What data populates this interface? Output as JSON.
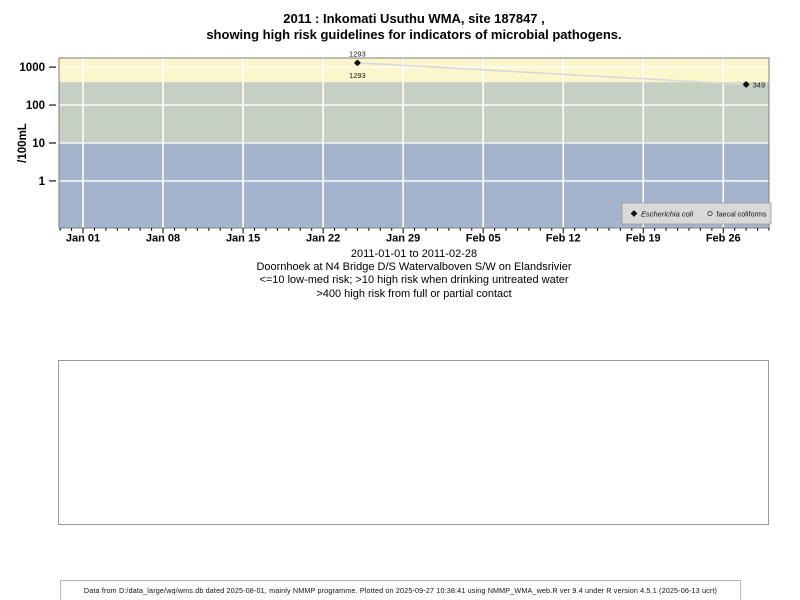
{
  "title": {
    "line1": "2011 : Inkomati Usuthu WMA, site 187847 ,",
    "line2": "showing high risk guidelines for indicators of microbial pathogens."
  },
  "caption": {
    "lines": [
      "2011-01-01 to 2011-02-28",
      "Doornhoek at N4 Bridge D/S Watervalboven S/W on Elandsrivier",
      "<=10 low-med risk; >10 high risk when drinking untreated water",
      ">400 high risk from full or partial contact"
    ]
  },
  "footer": {
    "text": "Data from D:/data_large/wq/wms.db dated 2025-08-01, mainly NMMP programme. Plotted on 2025-09-27 10:38:41 using NMMP_WMA_web.R ver 9.4 under R version 4.5.1 (2025-06-13 ucrt)"
  },
  "chart_data": {
    "type": "scatter",
    "title": "2011 : Inkomati Usuthu WMA, site 187847 , showing high risk guidelines for indicators of microbial pathogens.",
    "ylabel": "/100mL",
    "y_axis": {
      "scale": "log10",
      "ticks": [
        1,
        10,
        100,
        1000
      ],
      "range_log10": [
        -1.24,
        3.24
      ]
    },
    "x_axis": {
      "start_date": "2011-01-01",
      "range_days": [
        -2.1,
        60
      ],
      "minor_tick_interval_days": 1,
      "major_ticks": [
        {
          "day": 0,
          "label": "Jan 01"
        },
        {
          "day": 7,
          "label": "Jan 08"
        },
        {
          "day": 14,
          "label": "Jan 15"
        },
        {
          "day": 21,
          "label": "Jan 22"
        },
        {
          "day": 28,
          "label": "Jan 29"
        },
        {
          "day": 35,
          "label": "Feb 05"
        },
        {
          "day": 42,
          "label": "Feb 12"
        },
        {
          "day": 49,
          "label": "Feb 19"
        },
        {
          "day": 56,
          "label": "Feb 26"
        }
      ]
    },
    "grid": {
      "show": true,
      "color": "#ffffff"
    },
    "bands": [
      {
        "name": "high-risk-full-or-partial-contact",
        "min": 400,
        "max": null,
        "color": "#FCF6CC"
      },
      {
        "name": "high-risk-drinking-untreated",
        "min": 10,
        "max": 400,
        "color": "#C6D0C2"
      },
      {
        "name": "low-med-risk",
        "min": null,
        "max": 10,
        "color": "#A4B4CD"
      }
    ],
    "series": [
      {
        "name": "faecal coliforms",
        "symbol": "open-circle",
        "line_color": "#ECECEC",
        "points": [
          {
            "day": 24,
            "value": 1293,
            "label": "1293",
            "label_pos": "below"
          },
          {
            "day": 58,
            "value": 349
          }
        ]
      },
      {
        "name": "Escherichia coli",
        "symbol": "filled-diamond",
        "line_color": "#D8D8D8",
        "points": [
          {
            "day": 24,
            "value": 1293,
            "label": "1293",
            "label_pos": "above"
          },
          {
            "day": 58,
            "value": 349,
            "label": "349",
            "label_pos": "right"
          }
        ]
      }
    ],
    "legend": {
      "position": "bottom-right",
      "background": "#D9D9D9",
      "border": "#9a9a9a",
      "items": [
        {
          "symbol": "filled-diamond",
          "label": "Escherichia coli",
          "italic": true
        },
        {
          "symbol": "open-circle",
          "label": "faecal coliforms",
          "italic": false
        }
      ]
    }
  }
}
